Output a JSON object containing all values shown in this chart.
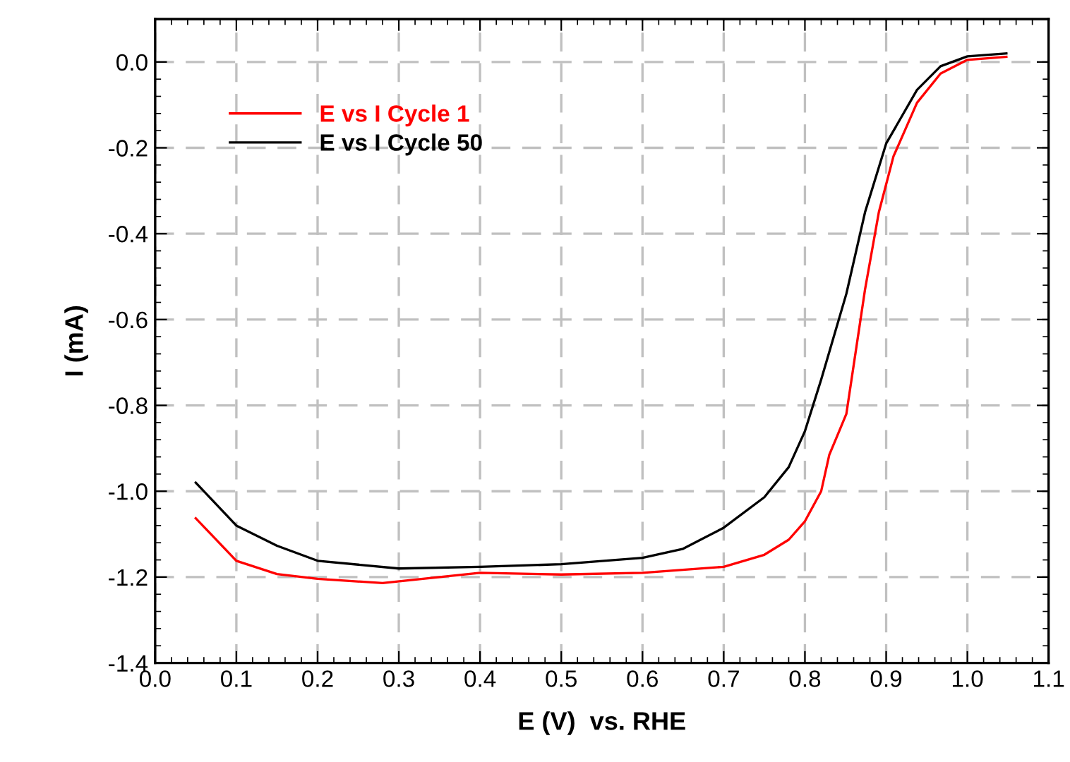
{
  "chart_data": {
    "type": "line",
    "xlabel": "E (V)  vs. RHE",
    "ylabel": "I (mA)",
    "xlim": [
      0.0,
      1.1
    ],
    "ylim": [
      -1.4,
      0.1
    ],
    "xticks": [
      {
        "value": 0.0,
        "label": "0.0"
      },
      0.1,
      0.2,
      0.3,
      0.4,
      0.5,
      0.6,
      0.7,
      0.8,
      0.9,
      {
        "value": 1.0,
        "label": "1.0"
      },
      1.1
    ],
    "yticks": [
      {
        "value": -1.4,
        "label": "-1.4"
      },
      {
        "value": -1.2,
        "label": "-1.2"
      },
      {
        "value": -1.0,
        "label": "-1.0"
      },
      {
        "value": -0.8,
        "label": "-0.8"
      },
      {
        "value": -0.6,
        "label": "-0.6"
      },
      {
        "value": -0.4,
        "label": "-0.4"
      },
      {
        "value": -0.2,
        "label": "-0.2"
      },
      {
        "value": 0.0,
        "label": "0.0"
      }
    ],
    "grid": true,
    "legend": "top left",
    "marker": "none",
    "line_style": "solid",
    "series": [
      {
        "name": "E vs I Cycle 1",
        "color": "#ff0000",
        "x": [
          0.05,
          0.1,
          0.15,
          0.2,
          0.28,
          0.4,
          0.5,
          0.6,
          0.7,
          0.75,
          0.78,
          0.8,
          0.82,
          0.83,
          0.84,
          0.851,
          0.874,
          0.891,
          0.909,
          0.938,
          0.967,
          1.0,
          1.048
        ],
        "values": [
          -1.063,
          -1.162,
          -1.193,
          -1.204,
          -1.214,
          -1.19,
          -1.194,
          -1.19,
          -1.176,
          -1.148,
          -1.113,
          -1.07,
          -1.0,
          -0.915,
          -0.87,
          -0.82,
          -0.53,
          -0.35,
          -0.22,
          -0.095,
          -0.027,
          0.005,
          0.012
        ]
      },
      {
        "name": "E vs I Cycle 50",
        "color": "#000000",
        "x": [
          0.05,
          0.1,
          0.15,
          0.2,
          0.3,
          0.4,
          0.5,
          0.6,
          0.65,
          0.7,
          0.75,
          0.78,
          0.8,
          0.82,
          0.851,
          0.874,
          0.9,
          0.938,
          0.967,
          1.0,
          1.048
        ],
        "values": [
          -0.98,
          -1.08,
          -1.127,
          -1.162,
          -1.18,
          -1.176,
          -1.17,
          -1.155,
          -1.134,
          -1.085,
          -1.014,
          -0.944,
          -0.86,
          -0.74,
          -0.54,
          -0.35,
          -0.19,
          -0.065,
          -0.01,
          0.013,
          0.02
        ]
      }
    ]
  }
}
